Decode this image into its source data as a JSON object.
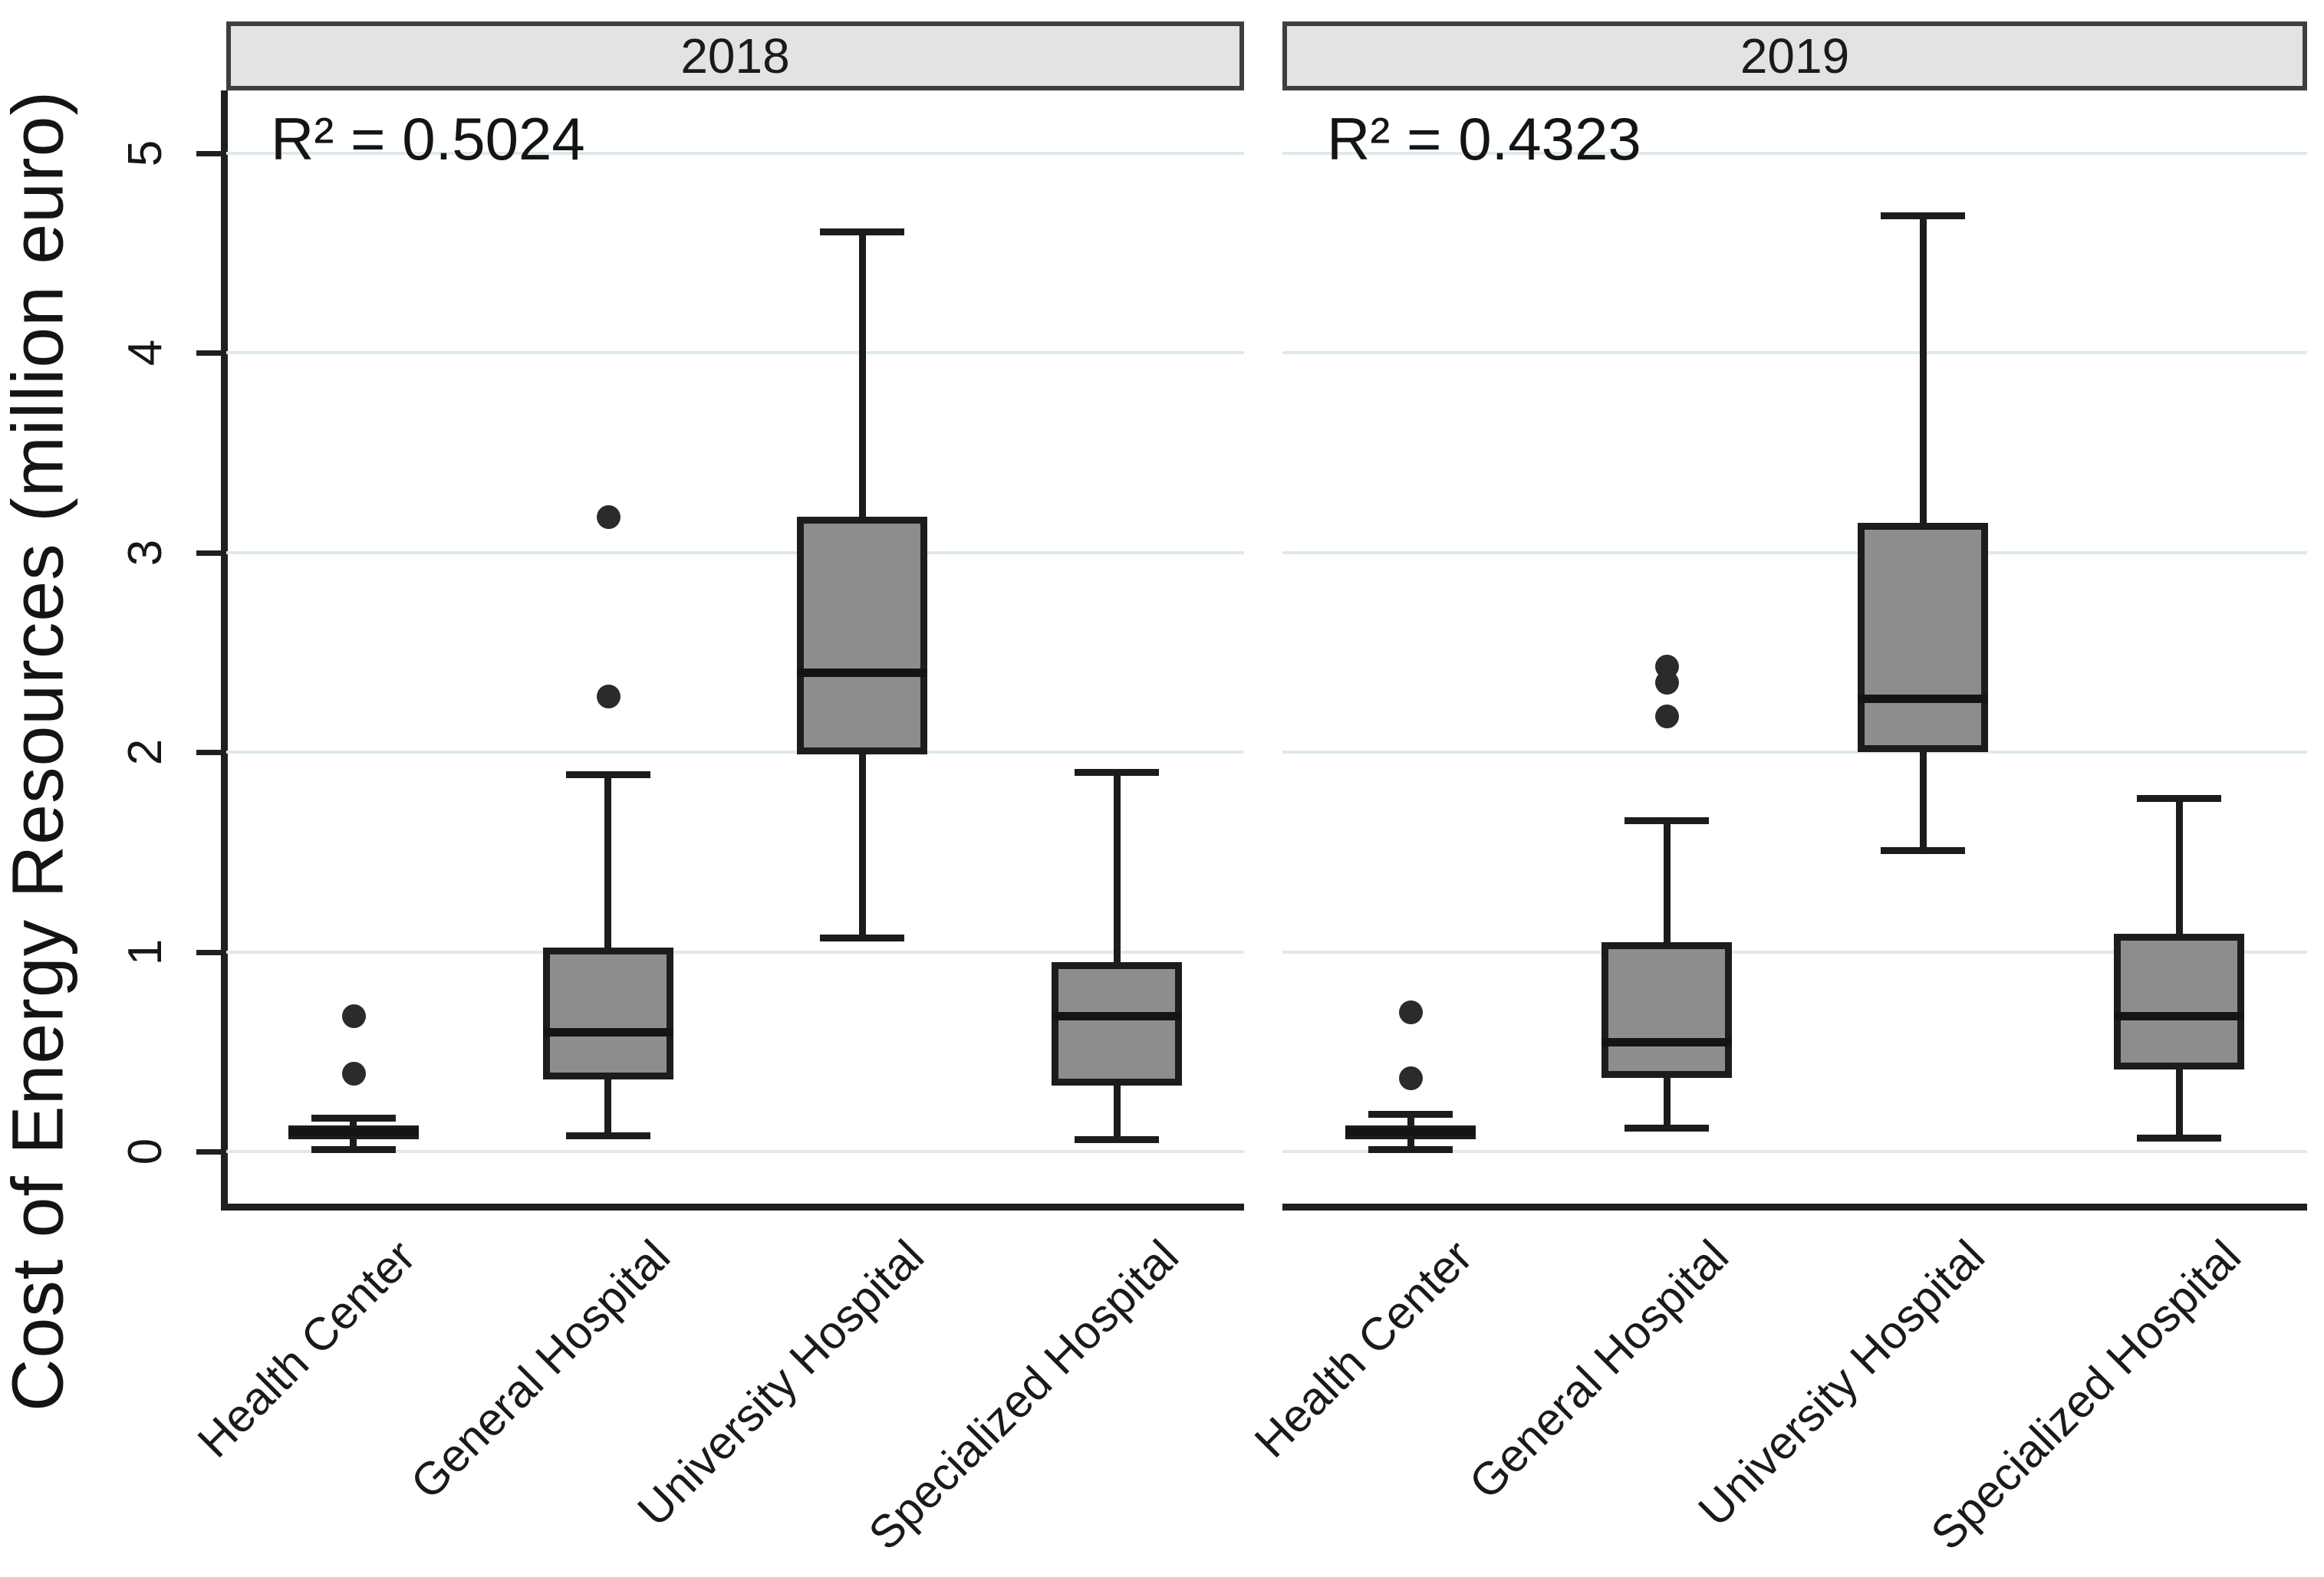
{
  "figure_title": "",
  "y_axis": {
    "title": "Cost of Energy Resources (million euro)"
  },
  "chart_data": {
    "type": "boxplot",
    "ylabel": "Cost of Energy Resources (million euro)",
    "ylim": [
      0,
      5
    ],
    "yticks": [
      0,
      1,
      2,
      3,
      4,
      5
    ],
    "grid": true,
    "grid_color": "#dde9ef",
    "categories": [
      "Health Center",
      "General Hospital",
      "University Hospital",
      "Specialized Hospital"
    ],
    "panels": [
      {
        "title": "2018",
        "r2_text": "R² = 0.5024",
        "r2": 0.5024,
        "series": [
          {
            "category": "Health Center",
            "whisker_low": 0.01,
            "q1": 0.06,
            "median": 0.1,
            "q3": 0.13,
            "whisker_high": 0.17,
            "outliers": [
              0.39,
              0.68
            ]
          },
          {
            "category": "General Hospital",
            "whisker_low": 0.08,
            "q1": 0.36,
            "median": 0.6,
            "q3": 1.02,
            "whisker_high": 1.89,
            "outliers": [
              2.28,
              3.18
            ]
          },
          {
            "category": "University Hospital",
            "whisker_low": 1.07,
            "q1": 1.99,
            "median": 2.4,
            "q3": 3.18,
            "whisker_high": 4.61,
            "outliers": []
          },
          {
            "category": "Specialized Hospital",
            "whisker_low": 0.06,
            "q1": 0.33,
            "median": 0.68,
            "q3": 0.95,
            "whisker_high": 1.9,
            "outliers": []
          }
        ]
      },
      {
        "title": "2019",
        "r2_text": "R² = 0.4323",
        "r2": 0.4323,
        "series": [
          {
            "category": "Health Center",
            "whisker_low": 0.01,
            "q1": 0.07,
            "median": 0.1,
            "q3": 0.13,
            "whisker_high": 0.19,
            "outliers": [
              0.37,
              0.7
            ]
          },
          {
            "category": "General Hospital",
            "whisker_low": 0.12,
            "q1": 0.37,
            "median": 0.55,
            "q3": 1.05,
            "whisker_high": 1.66,
            "outliers": [
              2.18,
              2.35,
              2.43
            ]
          },
          {
            "category": "University Hospital",
            "whisker_low": 1.51,
            "q1": 2.0,
            "median": 2.27,
            "q3": 3.15,
            "whisker_high": 4.69,
            "outliers": []
          },
          {
            "category": "Specialized Hospital",
            "whisker_low": 0.07,
            "q1": 0.41,
            "median": 0.68,
            "q3": 1.09,
            "whisker_high": 1.77,
            "outliers": []
          }
        ]
      }
    ],
    "colors": {
      "box_fill": "#8d8d8d",
      "box_border": "#1c1c1c",
      "header_fill": "#e3e3e3",
      "header_border": "#3f3f3f",
      "gridline": "#dde9ef",
      "outlier": "#2b2b2b"
    }
  }
}
